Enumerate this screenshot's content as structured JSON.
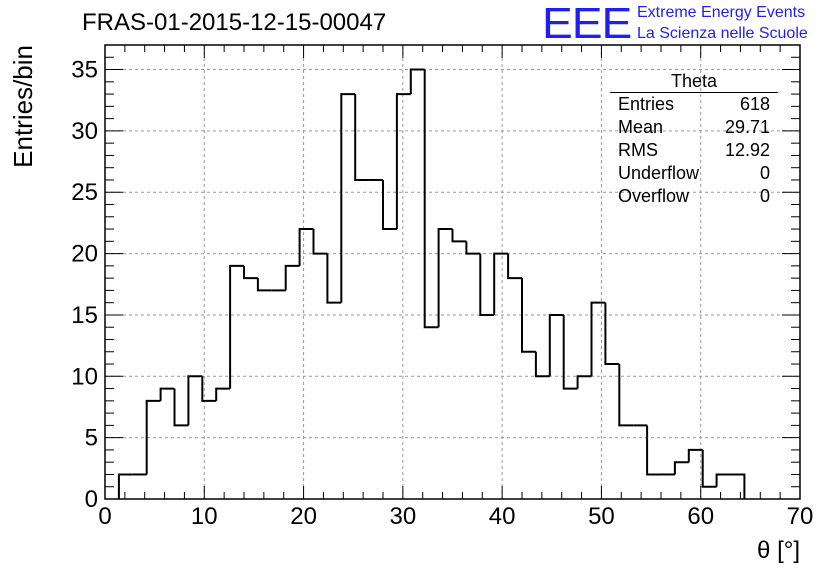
{
  "header": {
    "title": "FRAS-01-2015-12-15-00047"
  },
  "logo": {
    "mark": "EEE",
    "line1": "Extreme Energy Events",
    "line2": "La Scienza nelle Scuole"
  },
  "stats_box": {
    "title": "Theta",
    "rows": [
      {
        "label": "Entries",
        "value": "618"
      },
      {
        "label": "Mean",
        "value": "29.71"
      },
      {
        "label": "RMS",
        "value": "12.92"
      },
      {
        "label": "Underflow",
        "value": "0"
      },
      {
        "label": "Overflow",
        "value": "0"
      }
    ]
  },
  "chart_data": {
    "type": "histogram",
    "title": "FRAS-01-2015-12-15-00047",
    "xlabel": "θ [°]",
    "ylabel": "Entries/bin",
    "xlim": [
      0,
      70
    ],
    "ylim": [
      0,
      37
    ],
    "xticks": [
      0,
      10,
      20,
      30,
      40,
      50,
      60,
      70
    ],
    "yticks": [
      0,
      5,
      10,
      15,
      20,
      25,
      30,
      35
    ],
    "grid": true,
    "bin_edges_start": 1.4,
    "bin_width": 1.4,
    "values": [
      2,
      2,
      8,
      9,
      6,
      10,
      8,
      9,
      19,
      18,
      17,
      17,
      19,
      22,
      20,
      16,
      33,
      26,
      26,
      22,
      33,
      35,
      14,
      22,
      21,
      20,
      15,
      20,
      18,
      12,
      10,
      15,
      9,
      10,
      16,
      11,
      6,
      6,
      2,
      2,
      3,
      4,
      1,
      2,
      2
    ],
    "colors": {
      "line": "#000000",
      "grid": "#9a9a9a"
    }
  }
}
